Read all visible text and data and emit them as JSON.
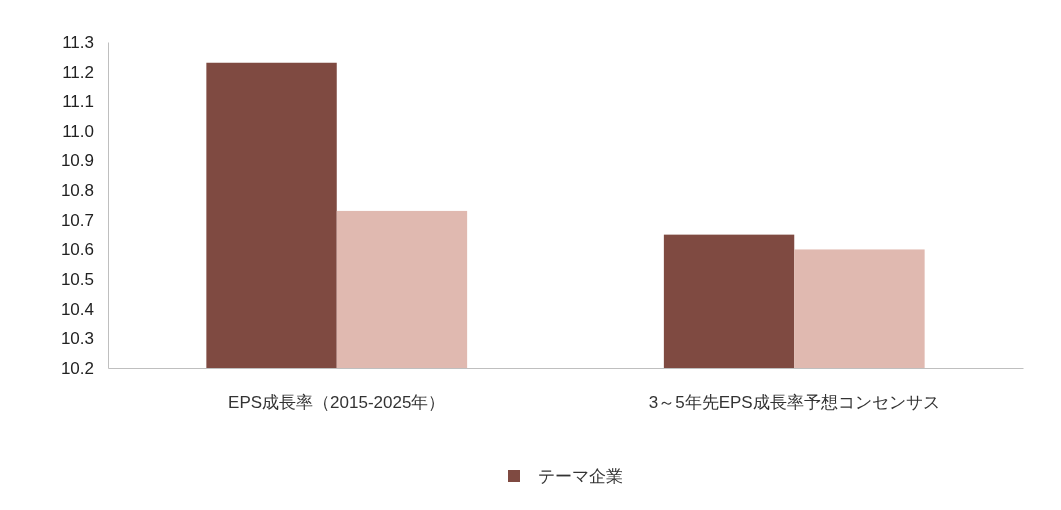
{
  "chart_data": {
    "type": "bar",
    "categories": [
      "EPS成長率（2015-2025年）",
      "3～5年先EPS成長率予想コンセンサス"
    ],
    "series": [
      {
        "name": "テーマ企業",
        "color": "#7f4a41",
        "values": [
          11.23,
          10.65
        ]
      },
      {
        "color": "#e0b9b0",
        "values": [
          10.73,
          10.6
        ]
      }
    ],
    "ylim": [
      10.2,
      11.3
    ],
    "yticks": [
      {
        "value": 10.2,
        "label": "10.2"
      },
      {
        "value": 10.3,
        "label": "10.3"
      },
      {
        "value": 10.4,
        "label": "10.4"
      },
      {
        "value": 10.5,
        "label": "10.5"
      },
      {
        "value": 10.6,
        "label": "10.6"
      },
      {
        "value": 10.7,
        "label": "10.7"
      },
      {
        "value": 10.8,
        "label": "10.8"
      },
      {
        "value": 10.9,
        "label": "10.9"
      },
      {
        "value": 11.0,
        "label": "11.0"
      },
      {
        "value": 11.1,
        "label": "11.1"
      },
      {
        "value": 11.2,
        "label": "11.2"
      },
      {
        "value": 11.3,
        "label": "11.3"
      }
    ],
    "grid": false,
    "legend": "bottom"
  }
}
